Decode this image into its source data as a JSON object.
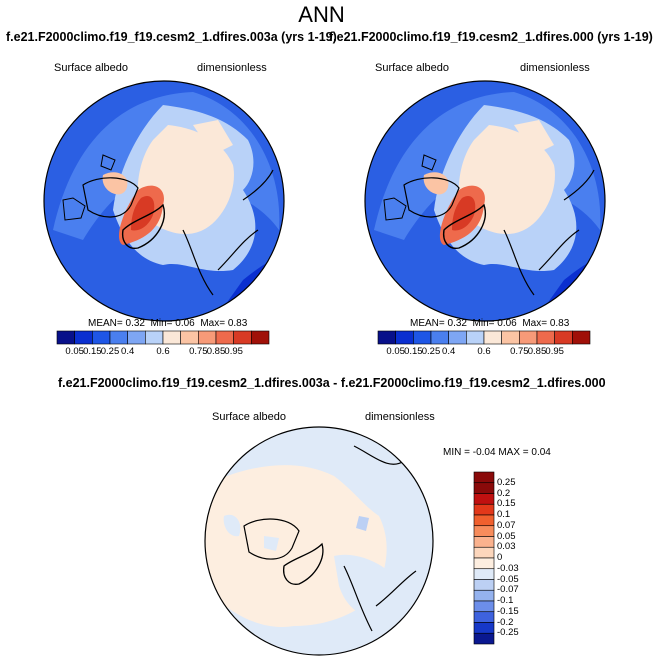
{
  "title": "ANN",
  "panels": [
    {
      "case": "f.e21.F2000climo.f19_f19.cesm2_1.dfires.003a (yrs 1-19)",
      "variable": "Surface albedo",
      "units": "dimensionless",
      "stats": {
        "mean_label": "MEAN=",
        "mean": "0.32",
        "min_label": "Min=",
        "min": "0.06",
        "max_label": "Max=",
        "max": "0.83"
      },
      "colorbar_labels": [
        "0.05",
        "0.15",
        "0.25",
        "0.4",
        "0.6",
        "0.75",
        "0.85",
        "0.95"
      ]
    },
    {
      "case": "f.e21.F2000climo.f19_f19.cesm2_1.dfires.000 (yrs 1-19)",
      "variable": "Surface albedo",
      "units": "dimensionless",
      "stats": {
        "mean_label": "MEAN=",
        "mean": "0.32",
        "min_label": "Min=",
        "min": "0.06",
        "max_label": "Max=",
        "max": "0.83"
      },
      "colorbar_labels": [
        "0.05",
        "0.15",
        "0.25",
        "0.4",
        "0.6",
        "0.75",
        "0.85",
        "0.95"
      ]
    }
  ],
  "diff": {
    "title": "f.e21.F2000climo.f19_f19.cesm2_1.dfires.003a - f.e21.F2000climo.f19_f19.cesm2_1.dfires.000",
    "variable": "Surface albedo",
    "units": "dimensionless",
    "stats": {
      "min_label": "MIN =",
      "min": "-0.04",
      "max_label": "MAX =",
      "max": "0.04"
    },
    "colorbar_labels": [
      "0.25",
      "0.2",
      "0.15",
      "0.1",
      "0.07",
      "0.05",
      "0.03",
      "0",
      "-0.03",
      "-0.05",
      "-0.07",
      "-0.1",
      "-0.15",
      "-0.2",
      "-0.25"
    ]
  },
  "colors": {
    "abs_palette": [
      "#08108a",
      "#0a2fd0",
      "#1e56e6",
      "#4a7fef",
      "#7ea6f4",
      "#b9d2f8",
      "#fbe8d8",
      "#fbc4a4",
      "#f79a78",
      "#ee6a4c",
      "#d83a24",
      "#a01008"
    ],
    "diff_palette": [
      "#8a0a0a",
      "#c01010",
      "#e2381a",
      "#f0602e",
      "#f78c5c",
      "#fab28e",
      "#fcd6bc",
      "#fdeee0",
      "#dfeaf8",
      "#bcd0f4",
      "#94b2ee",
      "#6c8eea",
      "#3e62de",
      "#1638c8",
      "#0a1890"
    ]
  }
}
